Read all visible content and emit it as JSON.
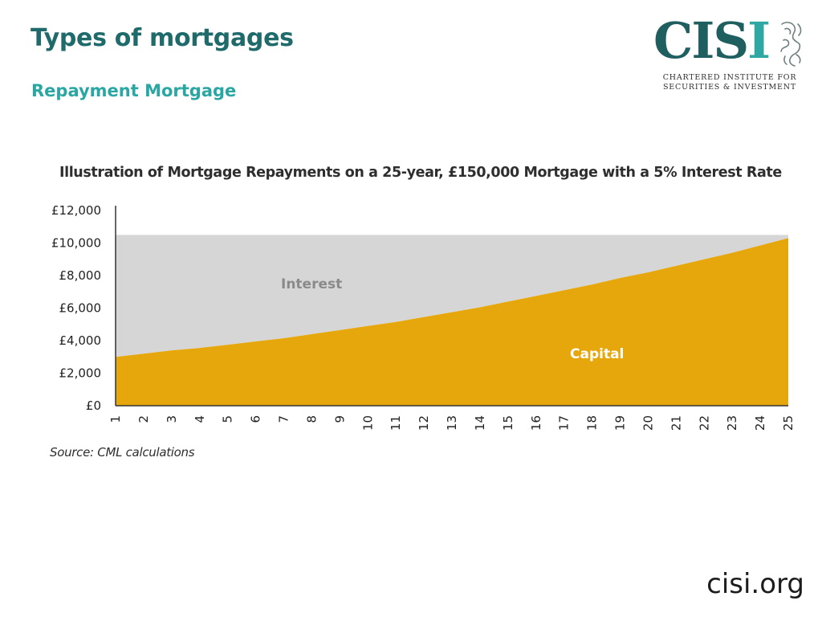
{
  "slide": {
    "title": "Types of mortgages",
    "subtitle": "Repayment Mortgage",
    "footer_url": "cisi.org"
  },
  "logo": {
    "word_main": "CIS",
    "word_accent": "I",
    "tagline_line1": "CHARTERED INSTITUTE FOR",
    "tagline_line2": "SECURITIES & INVESTMENT",
    "icon": "griffin-icon",
    "colors": {
      "dark": "#1f5f5f",
      "accent": "#2fa7a2"
    }
  },
  "chart_data": {
    "type": "area",
    "title": "Illustration of Mortgage Repayments on a 25-year, £150,000 Mortgage with a 5% Interest Rate",
    "source": "Source: CML calculations",
    "x": [
      1,
      2,
      3,
      4,
      5,
      6,
      7,
      8,
      9,
      10,
      11,
      12,
      13,
      14,
      15,
      16,
      17,
      18,
      19,
      20,
      21,
      22,
      23,
      24,
      25
    ],
    "total_payment": 10500,
    "series": [
      {
        "name": "Capital",
        "color": "#e6a70c",
        "values": [
          3000,
          3200,
          3400,
          3550,
          3750,
          3950,
          4150,
          4400,
          4650,
          4900,
          5150,
          5450,
          5750,
          6050,
          6400,
          6750,
          7100,
          7450,
          7850,
          8200,
          8600,
          9000,
          9400,
          9850,
          10300
        ]
      },
      {
        "name": "Interest",
        "color": "#d6d6d6",
        "values": [
          7500,
          7300,
          7100,
          6950,
          6750,
          6550,
          6350,
          6100,
          5850,
          5600,
          5350,
          5050,
          4750,
          4450,
          4100,
          3750,
          3400,
          3050,
          2650,
          2300,
          1900,
          1500,
          1100,
          650,
          200
        ]
      }
    ],
    "y_ticks": [
      "£0",
      "£2,000",
      "£4,000",
      "£6,000",
      "£8,000",
      "£10,000",
      "£12,000"
    ],
    "ylim": [
      0,
      12000
    ],
    "grid": false,
    "legend": "inline labels"
  }
}
